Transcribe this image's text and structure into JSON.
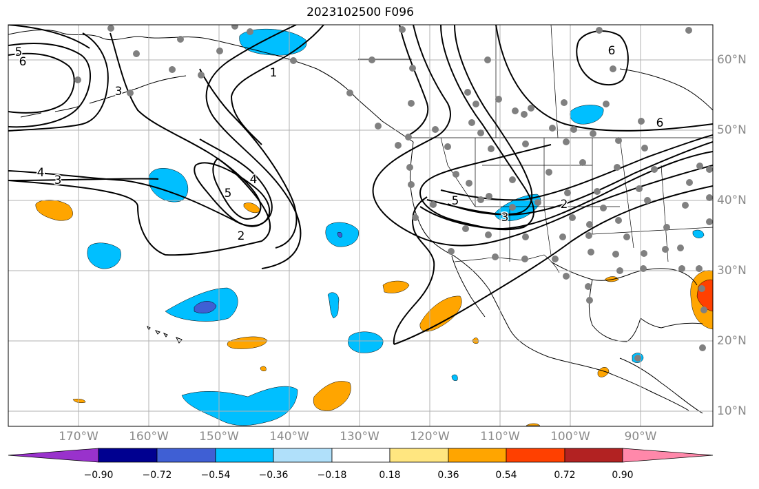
{
  "title": "2023102500 F096",
  "colors": {
    "land_coast": "#000000",
    "grid": "#b0b0b0",
    "station_dot": "#808080",
    "contour": "#000000"
  },
  "lat_labels": [
    "60°N",
    "50°N",
    "40°N",
    "30°N",
    "20°N",
    "10°N"
  ],
  "lon_labels": [
    "170°W",
    "160°W",
    "150°W",
    "140°W",
    "130°W",
    "120°W",
    "110°W",
    "100°W",
    "90°W"
  ],
  "colorbar": {
    "ticks": [
      "−0.90",
      "−0.72",
      "−0.54",
      "−0.36",
      "−0.18",
      "0.18",
      "0.36",
      "0.54",
      "0.72",
      "0.90"
    ],
    "colors": [
      "#9932cc",
      "#000090",
      "#3f5fd4",
      "#00bfff",
      "#b0e0fa",
      "#ffffff",
      "#ffe680",
      "#ffa500",
      "#ff4000",
      "#b22222",
      "#ff88aa"
    ]
  },
  "contour_labels": [
    "5",
    "6",
    "3",
    "1",
    "4",
    "3",
    "4",
    "5",
    "2",
    "6",
    "5",
    "3",
    "2",
    "6"
  ]
}
